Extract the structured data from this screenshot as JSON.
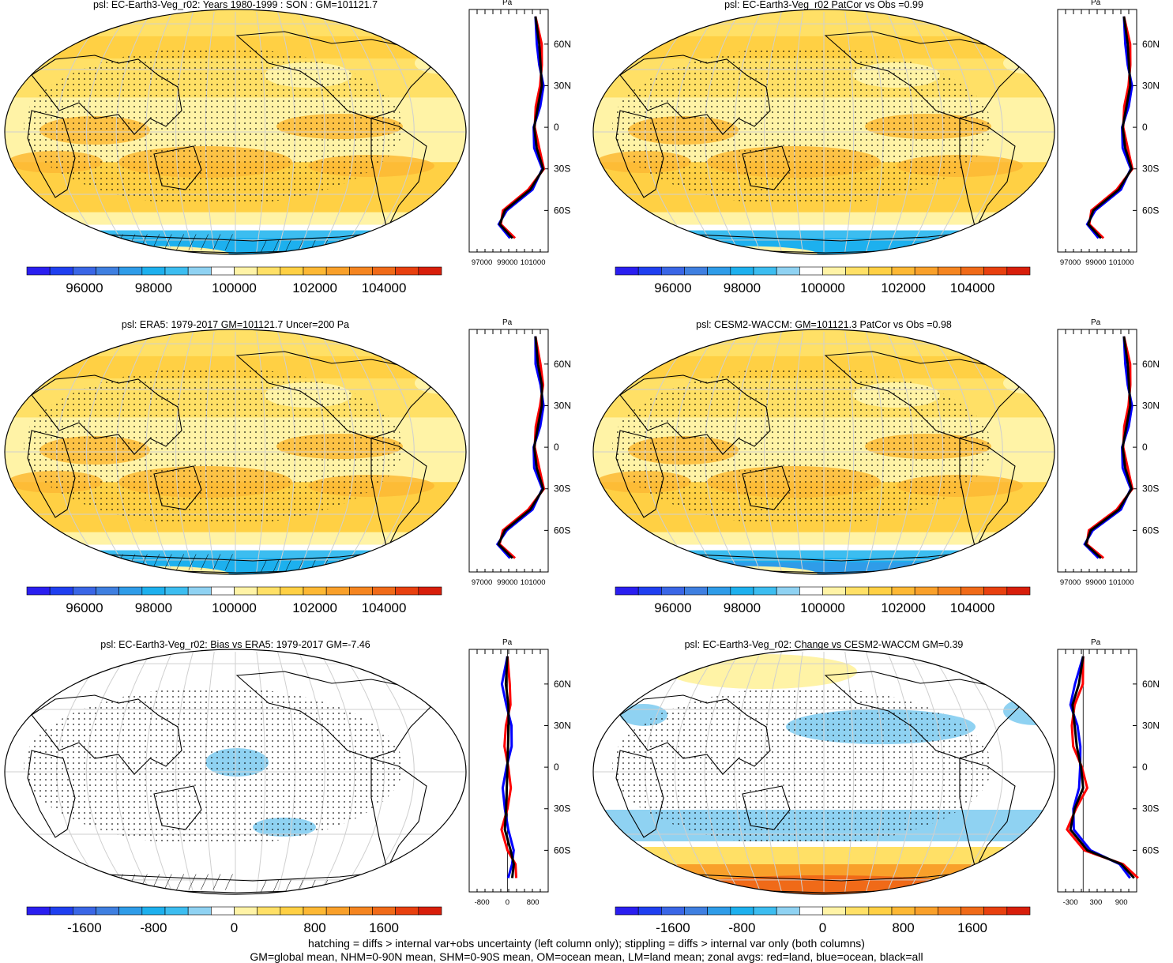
{
  "panels": [
    {
      "title": "psl: EC-Earth3-Veg_r02: Years 1980-1999 : SON : GM=101121.7",
      "zonal_unit": "Pa",
      "lat_ticks": [
        "60N",
        "30N",
        "0",
        "30S",
        "60S"
      ],
      "zonal_ticks": [
        "97000",
        "99000",
        "101000"
      ],
      "colorbar_labels": [
        "96000",
        "98000",
        "100000",
        "102000",
        "104000"
      ],
      "kind": "abs"
    },
    {
      "title": "psl: EC-Earth3-Veg_r02 PatCor vs Obs =0.99",
      "zonal_unit": "Pa",
      "lat_ticks": [
        "60N",
        "30N",
        "0",
        "30S",
        "60S"
      ],
      "zonal_ticks": [
        "97000",
        "99000",
        "101000"
      ],
      "colorbar_labels": [
        "96000",
        "98000",
        "100000",
        "102000",
        "104000"
      ],
      "kind": "abs"
    },
    {
      "title": "psl: ERA5: 1979-2017 GM=101121.7 Uncer=200 Pa",
      "zonal_unit": "Pa",
      "lat_ticks": [
        "60N",
        "30N",
        "0",
        "30S",
        "60S"
      ],
      "zonal_ticks": [
        "97000",
        "99000",
        "101000"
      ],
      "colorbar_labels": [
        "96000",
        "98000",
        "100000",
        "102000",
        "104000"
      ],
      "kind": "abs"
    },
    {
      "title": "psl: CESM2-WACCM: GM=101121.3 PatCor vs Obs =0.98",
      "zonal_unit": "Pa",
      "lat_ticks": [
        "60N",
        "30N",
        "0",
        "30S",
        "60S"
      ],
      "zonal_ticks": [
        "97000",
        "99000",
        "101000"
      ],
      "colorbar_labels": [
        "96000",
        "98000",
        "100000",
        "102000",
        "104000"
      ],
      "kind": "abs"
    },
    {
      "title": "psl: EC-Earth3-Veg_r02: Bias vs ERA5: 1979-2017  GM=-7.46",
      "zonal_unit": "Pa",
      "lat_ticks": [
        "60N",
        "30N",
        "0",
        "30S",
        "60S"
      ],
      "zonal_ticks": [
        "-800",
        "0",
        "800"
      ],
      "colorbar_labels": [
        "-1600",
        "-800",
        "0",
        "800",
        "1600"
      ],
      "kind": "diff"
    },
    {
      "title": "psl: EC-Earth3-Veg_r02: Change vs CESM2-WACCM GM=0.39",
      "zonal_unit": "Pa",
      "lat_ticks": [
        "60N",
        "30N",
        "0",
        "30S",
        "60S"
      ],
      "zonal_ticks": [
        "-300",
        "300",
        "900"
      ],
      "colorbar_labels": [
        "-1600",
        "-800",
        "0",
        "800",
        "1600"
      ],
      "kind": "diff"
    }
  ],
  "colors": {
    "colorbar": [
      "#2a1ef0",
      "#1f3ff0",
      "#3a66e6",
      "#3f7fe0",
      "#2f9ce8",
      "#1db0ee",
      "#3cbdf0",
      "#8fd2f2",
      "#ffffff",
      "#fff3a6",
      "#ffe066",
      "#ffd044",
      "#fdb834",
      "#f9a02a",
      "#f58520",
      "#f06a18",
      "#e8400f",
      "#d81e0b"
    ],
    "land_line": "#000000",
    "zonal_land": "#ff0000",
    "zonal_ocean": "#0000ff",
    "zonal_all": "#000000"
  },
  "chart_data": [
    {
      "type": "heatmap",
      "title": "psl: EC-Earth3-Veg_r02: Years 1980-1999 : SON : GM=101121.7",
      "zonal_mean_axis": {
        "ticks": [
          97000,
          99000,
          101000
        ],
        "unit": "Pa"
      },
      "latitudes": [
        80,
        60,
        45,
        30,
        15,
        0,
        -15,
        -30,
        -45,
        -60,
        -70,
        -80
      ],
      "zonal_mean_all": [
        101200,
        101500,
        101600,
        101700,
        101400,
        101100,
        101300,
        101800,
        100800,
        98800,
        98400,
        99400
      ],
      "colorbar": [
        95000,
        105000
      ]
    },
    {
      "type": "heatmap",
      "title": "psl: EC-Earth3-Veg_r02 PatCor vs Obs =0.99",
      "zonal_mean_axis": {
        "ticks": [
          97000,
          99000,
          101000
        ],
        "unit": "Pa"
      },
      "latitudes": [
        80,
        60,
        45,
        30,
        15,
        0,
        -15,
        -30,
        -45,
        -60,
        -70,
        -80
      ],
      "zonal_mean_all": [
        101200,
        101500,
        101600,
        101700,
        101400,
        101100,
        101300,
        101800,
        100800,
        98800,
        98400,
        99400
      ],
      "colorbar": [
        95000,
        105000
      ]
    },
    {
      "type": "heatmap",
      "title": "psl: ERA5: 1979-2017 GM=101121.7 Uncer=200 Pa",
      "zonal_mean_axis": {
        "ticks": [
          97000,
          99000,
          101000
        ],
        "unit": "Pa"
      },
      "latitudes": [
        80,
        60,
        45,
        30,
        15,
        0,
        -15,
        -30,
        -45,
        -60,
        -70,
        -80
      ],
      "zonal_mean_all": [
        101200,
        101400,
        101700,
        101700,
        101400,
        101100,
        101300,
        101800,
        100800,
        98800,
        98300,
        99400
      ],
      "colorbar": [
        95000,
        105000
      ]
    },
    {
      "type": "heatmap",
      "title": "psl: CESM2-WACCM: GM=101121.3 PatCor vs Obs =0.98",
      "zonal_mean_axis": {
        "ticks": [
          97000,
          99000,
          101000
        ],
        "unit": "Pa"
      },
      "latitudes": [
        80,
        60,
        45,
        30,
        15,
        0,
        -15,
        -30,
        -45,
        -60,
        -70,
        -80
      ],
      "zonal_mean_all": [
        101200,
        101500,
        101600,
        101700,
        101400,
        101100,
        101300,
        101800,
        100800,
        98600,
        98200,
        99400
      ],
      "colorbar": [
        95000,
        105000
      ]
    },
    {
      "type": "heatmap",
      "title": "psl: EC-Earth3-Veg_r02: Bias vs ERA5: 1979-2017  GM=-7.46",
      "zonal_mean_axis": {
        "ticks": [
          -800,
          0,
          800
        ],
        "unit": "Pa"
      },
      "latitudes": [
        80,
        60,
        45,
        30,
        15,
        0,
        -15,
        -30,
        -45,
        -60,
        -70,
        -80
      ],
      "zonal_mean_all": [
        0,
        -50,
        30,
        40,
        20,
        0,
        -20,
        -40,
        -80,
        100,
        200,
        150
      ],
      "colorbar": [
        -2000,
        2000
      ]
    },
    {
      "type": "heatmap",
      "title": "psl: EC-Earth3-Veg_r02: Change vs CESM2-WACCM GM=0.39",
      "zonal_mean_axis": {
        "ticks": [
          -300,
          300,
          900
        ],
        "unit": "Pa"
      },
      "latitudes": [
        80,
        60,
        45,
        30,
        15,
        0,
        -15,
        -30,
        -45,
        -60,
        -70,
        -80
      ],
      "zonal_mean_all": [
        0,
        -100,
        -250,
        -200,
        -150,
        -50,
        0,
        -200,
        -300,
        100,
        900,
        1200
      ],
      "colorbar": [
        -2000,
        2000
      ]
    }
  ],
  "footer": {
    "line1": "hatching = diffs > internal var+obs uncertainty (left column only); stippling = diffs > internal var only (both columns)",
    "line2": "GM=global mean, NHM=0-90N mean, SHM=0-90S mean, OM=ocean mean, LM=land mean; zonal avgs: red=land, blue=ocean, black=all"
  }
}
